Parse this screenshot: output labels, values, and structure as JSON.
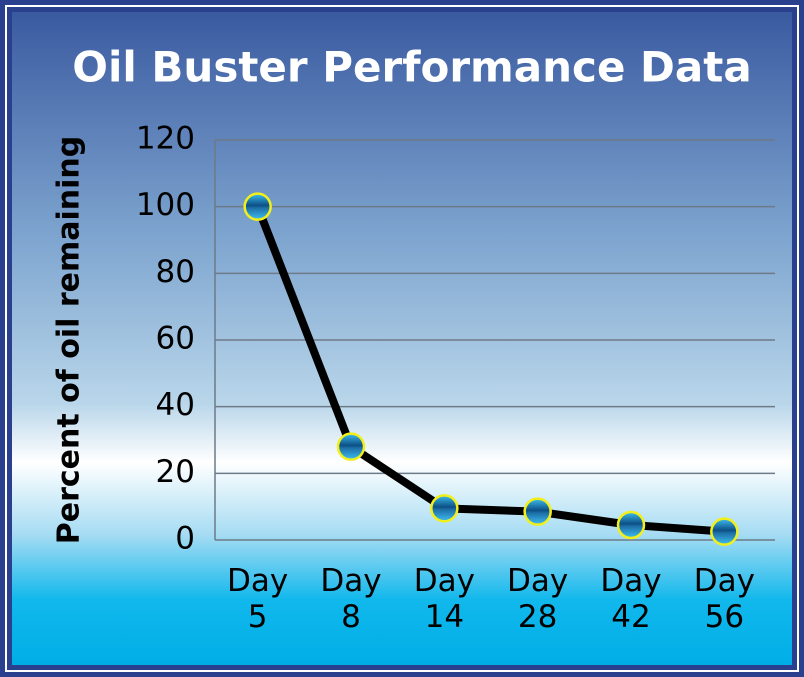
{
  "chart_data": {
    "type": "line",
    "title": "Oil Buster Performance Data",
    "y_label": "Percent of oil remaining",
    "categories": [
      "Day 5",
      "Day 8",
      "Day 14",
      "Day 28",
      "Day 42",
      "Day 56"
    ],
    "series": [
      {
        "name": "Percent of oil remaining",
        "color": "#000000",
        "values": [
          100,
          28,
          9.5,
          8.5,
          4.5,
          2.5
        ]
      }
    ],
    "ylim": [
      0,
      120
    ],
    "yticks": [
      0,
      20,
      40,
      60,
      80,
      100,
      120
    ],
    "grid": true
  }
}
